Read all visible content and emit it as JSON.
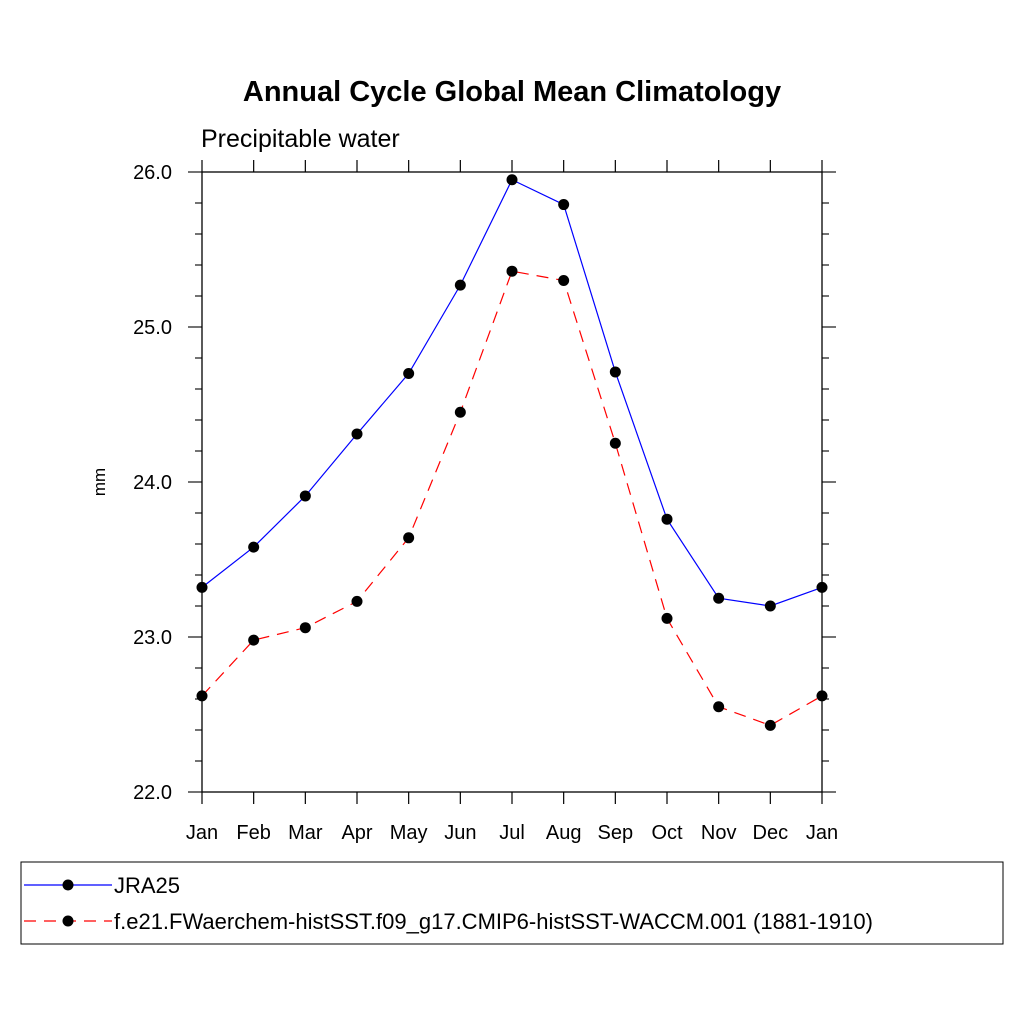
{
  "chart_data": {
    "type": "line",
    "title": "Annual Cycle Global Mean Climatology",
    "subtitle": "Precipitable water",
    "xlabel": "",
    "ylabel": "mm",
    "categories": [
      "Jan",
      "Feb",
      "Mar",
      "Apr",
      "May",
      "Jun",
      "Jul",
      "Aug",
      "Sep",
      "Oct",
      "Nov",
      "Dec",
      "Jan"
    ],
    "ylim": [
      22.0,
      26.0
    ],
    "yticks": [
      "22.0",
      "23.0",
      "24.0",
      "25.0",
      "26.0"
    ],
    "grid": false,
    "legend_placement": "bottom",
    "series": [
      {
        "name": "JRA25",
        "color": "#0000ff",
        "dash": "solid",
        "values": [
          23.32,
          23.58,
          23.91,
          24.31,
          24.7,
          25.27,
          25.95,
          25.79,
          24.71,
          23.76,
          23.25,
          23.2,
          23.32
        ]
      },
      {
        "name": "f.e21.FWaerchem-histSST.f09_g17.CMIP6-histSST-WACCM.001 (1881-1910)",
        "color": "#ff0000",
        "dash": "dashed",
        "values": [
          22.62,
          22.98,
          23.06,
          23.23,
          23.64,
          24.45,
          25.36,
          25.3,
          24.25,
          23.12,
          22.55,
          22.43,
          22.62
        ]
      }
    ]
  }
}
